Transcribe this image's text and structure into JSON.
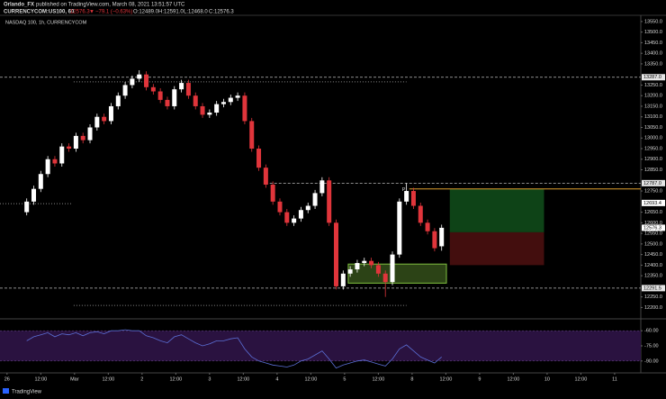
{
  "chart_data": {
    "type": "candlestick",
    "header": {
      "author": "Orlando_FX",
      "published": "published on TradingView.com, March 08, 2021 13:51:57 UTC",
      "symbol": "CURRENCYCOM:US100, 60",
      "last": "12576.3",
      "arrow": "▼",
      "change": "−79.1 (−0.63%)",
      "o": "O:12489.0",
      "h": "H:12591.0",
      "l": "L:12468.0",
      "c": "C:12576.3"
    },
    "title": "NASDAQ 100, 1h, CURRENCYCOM",
    "footer": "TradingView",
    "up_color": "#ffffff",
    "down_color": "#e0353b",
    "x": [
      7,
      9.5,
      12,
      14.5,
      17,
      19.5,
      22,
      24.5,
      27,
      29.5,
      32,
      34.5,
      37,
      39.5,
      42,
      44.5,
      47,
      49.5,
      52,
      54.5,
      57,
      59.5,
      62,
      64.5,
      67,
      69.5,
      72,
      74.5,
      77,
      79.5,
      82,
      84.5,
      87,
      89.5,
      92,
      94.5,
      97,
      99.5,
      102,
      104.5,
      107,
      109.5,
      112,
      114.5,
      117,
      119.5,
      122,
      124.5,
      127,
      129.5,
      132,
      134.5,
      137,
      139.5,
      142,
      144.5,
      147,
      149.5,
      152,
      154.5
    ],
    "open": [
      12650,
      12700,
      12760,
      12830,
      12900,
      12880,
      12960,
      12950,
      13010,
      12990,
      13050,
      13100,
      13080,
      13150,
      13200,
      13250,
      13280,
      13300,
      13240,
      13220,
      13180,
      13150,
      13230,
      13260,
      13200,
      13150,
      13110,
      13120,
      13160,
      13170,
      13190,
      13200,
      13080,
      12950,
      12860,
      12780,
      12700,
      12650,
      12600,
      12620,
      12660,
      12680,
      12740,
      12800,
      12600,
      12300,
      12360,
      12380,
      12410,
      12420,
      12400,
      12360,
      12320,
      12450,
      12700,
      12750,
      12680,
      12600,
      12560,
      12489
    ],
    "high": [
      12715,
      12775,
      12845,
      12915,
      12915,
      12975,
      12975,
      13025,
      13025,
      13065,
      13115,
      13115,
      13165,
      13215,
      13265,
      13295,
      13320,
      13315,
      13255,
      13235,
      13195,
      13245,
      13275,
      13275,
      13215,
      13165,
      13135,
      13175,
      13185,
      13205,
      13215,
      13215,
      13095,
      12965,
      12875,
      12795,
      12715,
      12665,
      12635,
      12675,
      12695,
      12755,
      12815,
      12815,
      12615,
      12375,
      12395,
      12425,
      12435,
      12435,
      12415,
      12375,
      12465,
      12715,
      12787,
      12765,
      12695,
      12615,
      12575,
      12591
    ],
    "low": [
      12635,
      12685,
      12745,
      12815,
      12865,
      12865,
      12935,
      12935,
      12975,
      12975,
      13035,
      13065,
      13065,
      13135,
      13185,
      13235,
      13265,
      13225,
      13205,
      13165,
      13135,
      13135,
      13215,
      13185,
      13135,
      13095,
      13095,
      13105,
      13145,
      13155,
      13175,
      13065,
      12935,
      12845,
      12765,
      12685,
      12635,
      12585,
      12585,
      12605,
      12645,
      12665,
      12725,
      12585,
      12285,
      12285,
      12345,
      12365,
      12395,
      12385,
      12345,
      12250,
      12305,
      12435,
      12685,
      12665,
      12585,
      12545,
      12465,
      12468
    ],
    "close": [
      12700,
      12760,
      12830,
      12900,
      12880,
      12960,
      12950,
      13010,
      12990,
      13050,
      13100,
      13080,
      13150,
      13200,
      13250,
      13280,
      13300,
      13240,
      13220,
      13180,
      13150,
      13230,
      13260,
      13200,
      13150,
      13110,
      13120,
      13160,
      13170,
      13190,
      13200,
      13080,
      12950,
      12860,
      12780,
      12700,
      12650,
      12600,
      12620,
      12660,
      12680,
      12740,
      12800,
      12600,
      12300,
      12360,
      12380,
      12410,
      12420,
      12400,
      12360,
      12320,
      12450,
      12700,
      12750,
      12680,
      12600,
      12560,
      12480,
      12576.3
    ],
    "xlim": [
      -2.5,
      225.3
    ],
    "xticks": [
      {
        "value": 0,
        "label": "26"
      },
      {
        "value": 12,
        "label": "12:00"
      },
      {
        "value": 24,
        "label": "Mar"
      },
      {
        "value": 36,
        "label": "12:00"
      },
      {
        "value": 48,
        "label": "2"
      },
      {
        "value": 60,
        "label": "12:00"
      },
      {
        "value": 72,
        "label": "3"
      },
      {
        "value": 84,
        "label": "12:00"
      },
      {
        "value": 96,
        "label": "4"
      },
      {
        "value": 108,
        "label": "12:00"
      },
      {
        "value": 120,
        "label": "5"
      },
      {
        "value": 132,
        "label": "12:00"
      },
      {
        "value": 144,
        "label": "8"
      },
      {
        "value": 156,
        "label": "12:00"
      },
      {
        "value": 168,
        "label": "9"
      },
      {
        "value": 180,
        "label": "12:00"
      },
      {
        "value": 192,
        "label": "10"
      },
      {
        "value": 204,
        "label": "12:00"
      },
      {
        "value": 216,
        "label": "11"
      }
    ],
    "ylim": [
      12155,
      13575
    ],
    "yticks": [
      {
        "value": 13550,
        "label": "13550.0"
      },
      {
        "value": 13500,
        "label": "13500.0"
      },
      {
        "value": 13450,
        "label": "13450.0"
      },
      {
        "value": 13400,
        "label": "13400.0"
      },
      {
        "value": 13350,
        "label": "13350.0"
      },
      {
        "value": 13250,
        "label": "13250.0"
      },
      {
        "value": 13200,
        "label": "13200.0"
      },
      {
        "value": 13150,
        "label": "13150.0"
      },
      {
        "value": 13100,
        "label": "13100.0"
      },
      {
        "value": 13050,
        "label": "13050.0"
      },
      {
        "value": 13000,
        "label": "13000.0"
      },
      {
        "value": 12950,
        "label": "12950.0"
      },
      {
        "value": 12900,
        "label": "12900.0"
      },
      {
        "value": 12850,
        "label": "12850.0"
      },
      {
        "value": 12750,
        "label": "12750.0"
      },
      {
        "value": 12650,
        "label": "12650.0"
      },
      {
        "value": 12600,
        "label": "12600.0"
      },
      {
        "value": 12550,
        "label": "12550.0"
      },
      {
        "value": 12500,
        "label": "12500.0"
      },
      {
        "value": 12450,
        "label": "12450.0"
      },
      {
        "value": 12400,
        "label": "12400.0"
      },
      {
        "value": 12350,
        "label": "12350.0"
      },
      {
        "value": 12250,
        "label": "12250.0"
      },
      {
        "value": 12200,
        "label": "12200.0"
      }
    ],
    "levels": [
      {
        "value": 13287,
        "label": "13287.0",
        "from": -2.5,
        "color": "#bbbbbb"
      },
      {
        "value": 12787,
        "label": "12787.0",
        "from": 93.4,
        "color": "#bbbbbb"
      },
      {
        "value": 12291.5,
        "label": "12291.5",
        "from": -2.5,
        "color": "#bbbbbb"
      }
    ],
    "tags": [
      {
        "value": 12693.4,
        "label": "12693.4"
      },
      {
        "value": 12576.3,
        "label": "12576.3"
      }
    ],
    "dotted": [
      {
        "value": 13265,
        "from": 23.7,
        "to": 142
      },
      {
        "value": 12690,
        "from": -2.5,
        "to": 23
      },
      {
        "value": 12210,
        "from": 23.7,
        "to": 142
      }
    ],
    "entry_line": {
      "value": 12760,
      "from": 143,
      "to": 225.3,
      "color": "#e0a030"
    },
    "pivot_label": "P",
    "zone": {
      "top": 12405,
      "bottom": 12315,
      "from": 121.3,
      "to": 156.2,
      "color": "#7fbf3f"
    },
    "target_box": {
      "top": 12760,
      "bottom": 12555,
      "from": 157.4,
      "to": 190.9,
      "color": "#0f4a1a"
    },
    "stop_box": {
      "top": 12555,
      "bottom": 12400,
      "from": 157.4,
      "to": 190.9,
      "color": "#4a1010"
    },
    "indicator": {
      "values": [
        -70,
        -66,
        -64,
        -62,
        -66,
        -63,
        -64,
        -62,
        -65,
        -62,
        -61,
        -63,
        -60,
        -60,
        -59,
        -60,
        -60,
        -65,
        -67,
        -70,
        -72,
        -66,
        -64,
        -68,
        -72,
        -75,
        -73,
        -70,
        -70,
        -68,
        -67,
        -78,
        -86,
        -90,
        -92,
        -94,
        -95,
        -96,
        -94,
        -90,
        -88,
        -84,
        -80,
        -88,
        -97,
        -94,
        -92,
        -90,
        -89,
        -91,
        -93,
        -95,
        -88,
        -78,
        -74,
        -80,
        -86,
        -89,
        -92,
        -86
      ],
      "color": "#5b6fd6",
      "band": [
        -90,
        -60
      ],
      "band_color": "#2a1240",
      "ylim": [
        -100,
        -50
      ],
      "yticks": [
        {
          "value": -60,
          "label": "-60.00"
        },
        {
          "value": -75,
          "label": "-75.00"
        },
        {
          "value": -90,
          "label": "-90.00"
        }
      ]
    }
  }
}
